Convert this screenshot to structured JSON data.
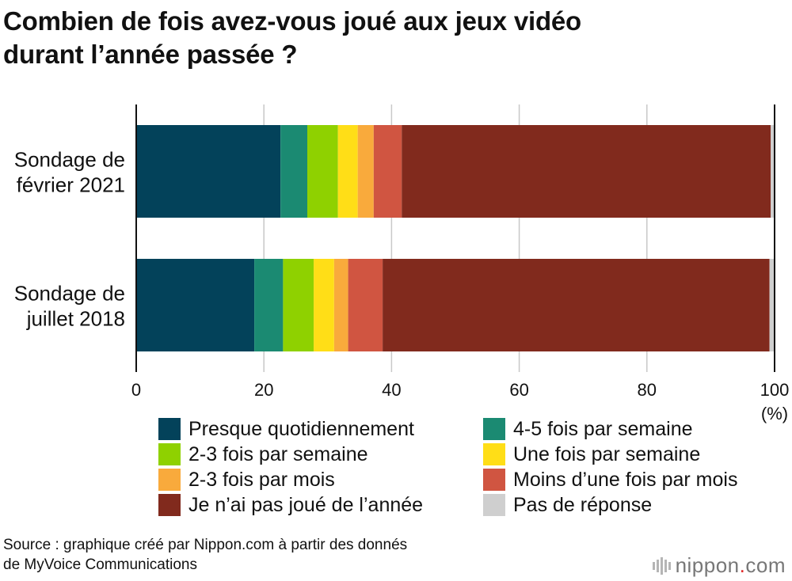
{
  "title_lines": [
    "Combien de fois avez-vous joué aux jeux vidéo",
    "durant l’année passée ?"
  ],
  "chart_data": {
    "type": "bar",
    "orientation": "horizontal",
    "stacked": true,
    "categories": [
      [
        "Sondage de",
        "février 2021"
      ],
      [
        "Sondage de",
        "juillet 2018"
      ]
    ],
    "series": [
      {
        "name": "Presque quotidiennement",
        "color": "#03425a",
        "values": [
          22.6,
          18.5
        ]
      },
      {
        "name": "4-5 fois par semaine",
        "color": "#1b8a72",
        "values": [
          4.2,
          4.5
        ]
      },
      {
        "name": "2-3 fois par semaine",
        "color": "#8fd100",
        "values": [
          4.8,
          4.8
        ]
      },
      {
        "name": "Une fois par semaine",
        "color": "#ffde17",
        "values": [
          3.1,
          3.2
        ]
      },
      {
        "name": "2-3 fois par mois",
        "color": "#f9aa3c",
        "values": [
          2.5,
          2.2
        ]
      },
      {
        "name": "Moins d’une fois par mois",
        "color": "#d05541",
        "values": [
          4.4,
          5.4
        ]
      },
      {
        "name": "Je n’ai pas joué de l’année",
        "color": "#812a1d",
        "values": [
          57.8,
          60.6
        ]
      },
      {
        "name": "Pas de réponse",
        "color": "#cfcfcf",
        "values": [
          0.6,
          0.8
        ]
      }
    ],
    "xlim": [
      0,
      100
    ],
    "xticks": [
      "0",
      "20",
      "40",
      "60",
      "80",
      "100"
    ],
    "x_unit": "(%)",
    "grid": true,
    "legend_position": "bottom"
  },
  "source_lines": [
    "Source : graphique créé par Nippon.com à partir des donnés",
    "de MyVoice Communications"
  ],
  "logo": {
    "name": "nippon",
    "dot": ".",
    "suffix": "com"
  }
}
